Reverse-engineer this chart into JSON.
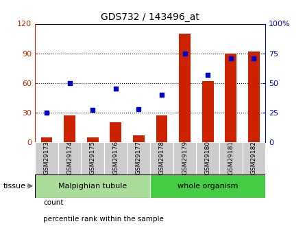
{
  "title": "GDS732 / 143496_at",
  "categories": [
    "GSM29173",
    "GSM29174",
    "GSM29175",
    "GSM29176",
    "GSM29177",
    "GSM29178",
    "GSM29179",
    "GSM29180",
    "GSM29181",
    "GSM29182"
  ],
  "counts": [
    5,
    27,
    5,
    20,
    7,
    27,
    110,
    62,
    90,
    92
  ],
  "percentiles": [
    25,
    50,
    27,
    45,
    28,
    40,
    75,
    57,
    71,
    71
  ],
  "left_ylim": [
    0,
    120
  ],
  "right_ylim": [
    0,
    100
  ],
  "left_yticks": [
    0,
    30,
    60,
    90,
    120
  ],
  "right_yticks": [
    0,
    25,
    50,
    75,
    100
  ],
  "right_yticklabels": [
    "0",
    "25",
    "50",
    "75",
    "100%"
  ],
  "bar_color": "#cc2200",
  "dot_color": "#0000cc",
  "bar_width": 0.5,
  "tissue_groups": [
    {
      "label": "Malpighian tubule",
      "start": 0,
      "end": 5,
      "color": "#aadd99"
    },
    {
      "label": "whole organism",
      "start": 5,
      "end": 10,
      "color": "#44cc44"
    }
  ],
  "tissue_label": "tissue",
  "legend_items": [
    {
      "label": "count",
      "color": "#cc2200"
    },
    {
      "label": "percentile rank within the sample",
      "color": "#0000cc"
    }
  ],
  "plot_bg_color": "#ffffff",
  "tick_label_bg": "#cccccc",
  "fig_bg": "#ffffff"
}
